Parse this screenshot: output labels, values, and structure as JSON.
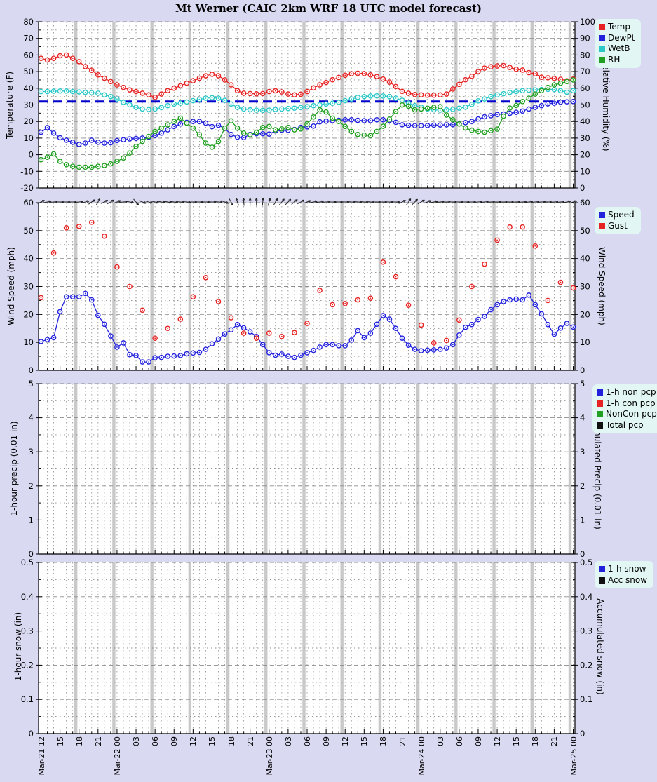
{
  "title": "Mt Werner (CAIC 2km WRF 18 UTC model forecast)",
  "colors": {
    "page_background": "#d9d9f2",
    "plot_background": "#ffffff",
    "legend_background": "#e2f7f3",
    "grid": "#8c8c8c",
    "day_band": "#c9c9c9",
    "freezing_line": "#0000cc"
  },
  "x_axis": {
    "tick_every_hours": 3,
    "hours_total": 84,
    "tick_labels": [
      "Mar-21 12",
      "15",
      "18",
      "21",
      "Mar-22 00",
      "03",
      "06",
      "09",
      "12",
      "15",
      "18",
      "21",
      "Mar-23 00",
      "03",
      "06",
      "09",
      "12",
      "15",
      "18",
      "21",
      "Mar-24 00",
      "03",
      "06",
      "09",
      "12",
      "15",
      "18",
      "21",
      "Mar-25 00"
    ]
  },
  "chart_data": [
    {
      "type": "line",
      "name": "temperature-humidity",
      "ylabel_left": "Temperature (F)",
      "ylabel_right": "Relative Humidity (%)",
      "ylim_left": [
        -20,
        80
      ],
      "ylim_right": [
        0,
        100
      ],
      "ytick_major": 10,
      "ytick_minor": 5,
      "freezing_line": {
        "value": 32,
        "color": "#0000cc",
        "style": "dashed"
      },
      "legend": [
        {
          "label": "Temp",
          "color": "#e62222"
        },
        {
          "label": "DewPt",
          "color": "#2222dd"
        },
        {
          "label": "WetB",
          "color": "#2cc8c8"
        },
        {
          "label": "RH",
          "color": "#22a022"
        }
      ],
      "series": [
        {
          "name": "Temp",
          "axis": "left",
          "color": "#e62222",
          "line": true,
          "x_step_hours": 1,
          "values": [
            58,
            57,
            58,
            59.5,
            60,
            58,
            56,
            53,
            50.8,
            48,
            46,
            44,
            42,
            40.5,
            39,
            38,
            37,
            36,
            34.5,
            36.5,
            38.5,
            40,
            41.5,
            43,
            44.5,
            46,
            47.5,
            48.4,
            47.5,
            45,
            42,
            38.5,
            37,
            36.8,
            36.6,
            36.8,
            38,
            38.4,
            37.8,
            36.5,
            36,
            36.4,
            38,
            40.2,
            42,
            43.5,
            45.1,
            46.5,
            47.8,
            48.7,
            49,
            48.8,
            48,
            47,
            45.5,
            43.7,
            41,
            38.1,
            37,
            36.2,
            36,
            35.8,
            35.8,
            36,
            36.5,
            39.5,
            42.3,
            45.1,
            47.2,
            50,
            52.1,
            52.9,
            53.4,
            53.6,
            52.5,
            51.4,
            50.9,
            49.4,
            48.7,
            46.6,
            46.3,
            45.9,
            45.4,
            44.5,
            45.5
          ]
        },
        {
          "name": "DewPt",
          "axis": "left",
          "color": "#2222dd",
          "line": true,
          "x_step_hours": 1,
          "values": [
            13.5,
            16.3,
            13,
            10.2,
            8.7,
            7.5,
            6.2,
            7,
            8.7,
            7.5,
            7,
            7.2,
            8.5,
            9,
            9.5,
            9.8,
            10,
            10.5,
            11.5,
            13,
            15,
            17,
            18.5,
            19.5,
            20,
            20,
            19,
            16.9,
            17.7,
            15.9,
            12.2,
            10.5,
            10.3,
            12.2,
            12.6,
            12.6,
            12.4,
            14.3,
            14.7,
            14.7,
            15.2,
            16.4,
            16.8,
            17.2,
            19.8,
            20.2,
            20.5,
            20.7,
            21,
            21,
            20.7,
            20.5,
            20.5,
            21,
            21,
            20.6,
            19.5,
            18,
            17.7,
            17.5,
            17.5,
            17.6,
            17.8,
            17.9,
            18,
            18.1,
            18.6,
            19.3,
            20,
            21.5,
            22.8,
            23.5,
            24.2,
            24.5,
            24.9,
            25.5,
            26.3,
            27.5,
            28.5,
            29.5,
            30.6,
            31,
            31.6,
            31.8,
            32
          ]
        },
        {
          "name": "WetB",
          "axis": "left",
          "color": "#2cc8c8",
          "line": true,
          "x_step_hours": 1,
          "values": [
            38,
            38,
            38.2,
            38.3,
            38.3,
            38,
            37.8,
            37.5,
            37.3,
            37,
            36,
            35,
            33.5,
            31.5,
            30,
            28.5,
            27.5,
            27.2,
            27.5,
            28.4,
            29.5,
            30.5,
            31,
            31.7,
            32.5,
            33.3,
            34,
            34.3,
            34,
            32.7,
            30.5,
            28.5,
            27.5,
            27,
            26.8,
            26.7,
            26.8,
            27.2,
            27.5,
            27.8,
            28,
            28.4,
            28.9,
            29.5,
            30,
            30.5,
            31,
            31.5,
            32.5,
            33.5,
            34.5,
            35,
            35.3,
            35.4,
            35.3,
            35,
            34,
            32.8,
            31,
            29.5,
            28.6,
            27.5,
            27,
            26.8,
            27,
            27.3,
            28,
            28.6,
            30.3,
            32.4,
            33.5,
            35,
            36,
            36.7,
            37.5,
            38,
            38.5,
            38.8,
            39,
            39.2,
            39.3,
            39.2,
            38.5,
            37.6,
            38.5
          ]
        },
        {
          "name": "RH",
          "axis": "right",
          "color": "#22a022",
          "line": true,
          "x_step_hours": 1,
          "values": [
            17,
            18.5,
            20.5,
            16,
            14,
            13,
            12.5,
            12.5,
            12.5,
            13,
            13.5,
            14.5,
            16,
            18,
            21,
            25,
            28,
            31,
            34,
            36,
            38,
            40,
            42,
            39,
            36,
            32,
            27,
            24.5,
            28,
            36,
            40.4,
            36,
            33,
            32,
            33.5,
            36.4,
            37,
            35,
            35.5,
            36.4,
            35,
            35.5,
            38.5,
            42.7,
            47,
            45.7,
            42,
            40,
            37,
            34,
            32.2,
            31.8,
            31.5,
            34,
            37.1,
            41.4,
            46,
            49.9,
            49.2,
            47,
            47.5,
            48,
            48.5,
            48.9,
            43.9,
            41,
            38.5,
            36.1,
            34.7,
            34,
            33.5,
            34.5,
            35.4,
            43.2,
            48.1,
            49.6,
            52,
            54,
            56.5,
            58.5,
            60.5,
            62,
            63,
            64,
            65
          ]
        }
      ]
    },
    {
      "type": "line",
      "name": "wind",
      "ylabel_left": "Wind Speed (mph)",
      "ylabel_right": "Wind Speed (mph)",
      "ylim_left": [
        0,
        60
      ],
      "ylim_right": [
        0,
        60
      ],
      "ytick_major": 10,
      "ytick_minor": 5,
      "legend": [
        {
          "label": "Speed",
          "color": "#2222dd"
        },
        {
          "label": "Gust",
          "color": "#e62222"
        }
      ],
      "wind_direction_deg": [
        25,
        10,
        5,
        0,
        0,
        0,
        5,
        15,
        35,
        60,
        25,
        30,
        20,
        5,
        -10,
        -50,
        -20,
        -15,
        -12,
        -10,
        -10,
        -8,
        -5,
        -5,
        0,
        0,
        0,
        0,
        -5,
        -20,
        -60,
        110,
        95,
        90,
        90,
        85,
        75,
        60,
        50,
        45,
        40,
        30,
        20,
        12,
        8,
        5,
        0,
        0,
        -3,
        -5,
        -5,
        -5,
        -5,
        0,
        0,
        0,
        0,
        25,
        55,
        45,
        30,
        20,
        10,
        5,
        3,
        0,
        0,
        0,
        3,
        5,
        5,
        3,
        0,
        0,
        0,
        3,
        5,
        8,
        5,
        3,
        0,
        3,
        5,
        10,
        15
      ],
      "series": [
        {
          "name": "Speed",
          "axis": "left",
          "color": "#2222dd",
          "line": true,
          "x_step_hours": 1,
          "values": [
            10.3,
            11,
            11.7,
            21,
            26.3,
            26.3,
            26.3,
            27.5,
            25.2,
            19.7,
            16.5,
            12.3,
            8.3,
            9.8,
            5.6,
            5.3,
            3,
            3,
            4.5,
            4.6,
            5,
            5.1,
            5.3,
            5.9,
            6.2,
            6.4,
            7.5,
            9.5,
            11.2,
            13,
            14.5,
            16.4,
            15.2,
            13.8,
            12.1,
            9.2,
            6.3,
            5.4,
            5.8,
            5,
            4.6,
            5.4,
            6.3,
            7.1,
            8.3,
            9.2,
            9.2,
            8.8,
            8.8,
            10.8,
            14.2,
            11.7,
            13.3,
            16.5,
            19.6,
            18.3,
            15,
            11.5,
            9,
            7.5,
            7,
            7.2,
            7.3,
            7.5,
            8,
            9.2,
            12.6,
            15.4,
            16.4,
            18.2,
            19.3,
            21.7,
            23.5,
            24.6,
            25.2,
            25.5,
            25.2,
            26.9,
            23.5,
            20.2,
            16.4,
            12.9,
            15.1,
            16.8,
            15.5
          ]
        },
        {
          "name": "Gust",
          "axis": "left",
          "color": "#e62222",
          "line": false,
          "x_step_hours": 2,
          "values": [
            26,
            42,
            51,
            51.5,
            53,
            48,
            37,
            30,
            21.5,
            11.5,
            15,
            18.3,
            26.3,
            33.2,
            24.6,
            18.8,
            13.3,
            11.5,
            13.3,
            12.1,
            13.5,
            16.8,
            28.6,
            23.5,
            23.9,
            25.2,
            25.8,
            38.7,
            33.5,
            23.3,
            16.2,
            9.8,
            10.7,
            18,
            30,
            38,
            46.6,
            51.3,
            51.3,
            44.5,
            25,
            31.5,
            29.5
          ]
        }
      ]
    },
    {
      "type": "line",
      "name": "precipitation",
      "ylabel_left": "1-hour precip (0.01 in)",
      "ylabel_right": "Accumulated Precip (0.01 in)",
      "ylim_left": [
        0,
        5
      ],
      "ylim_right": [
        0,
        5
      ],
      "ytick_major": 1,
      "ytick_minor": 0.5,
      "legend": [
        {
          "label": "1-h non pcp",
          "color": "#2222dd"
        },
        {
          "label": "1-h con pcp",
          "color": "#e62222"
        },
        {
          "label": "NonCon pcp",
          "color": "#22a022"
        },
        {
          "label": "Total pcp",
          "color": "#111111"
        }
      ],
      "series": [
        {
          "name": "1-h non pcp",
          "axis": "left",
          "color": "#2222dd",
          "line": true,
          "x_step_hours": 1,
          "values": []
        },
        {
          "name": "1-h con pcp",
          "axis": "left",
          "color": "#e62222",
          "line": false,
          "x_step_hours": 1,
          "values": []
        },
        {
          "name": "NonCon pcp",
          "axis": "right",
          "color": "#22a022",
          "line": true,
          "x_step_hours": 1,
          "values": []
        },
        {
          "name": "Total pcp",
          "axis": "right",
          "color": "#111111",
          "line": true,
          "x_step_hours": 1,
          "values": []
        }
      ]
    },
    {
      "type": "line",
      "name": "snow",
      "ylabel_left": "1-hour snow (in)",
      "ylabel_right": "Accumulated snow (in)",
      "ylim_left": [
        0,
        0.5
      ],
      "ylim_right": [
        0,
        0.5
      ],
      "ytick_major": 0.1,
      "ytick_minor": 0.05,
      "legend": [
        {
          "label": "1-h snow",
          "color": "#2222dd"
        },
        {
          "label": "Acc snow",
          "color": "#111111"
        }
      ],
      "series": [
        {
          "name": "1-h snow",
          "axis": "left",
          "color": "#2222dd",
          "line": true,
          "x_step_hours": 1,
          "values": []
        },
        {
          "name": "Acc snow",
          "axis": "right",
          "color": "#111111",
          "line": true,
          "x_step_hours": 1,
          "values": []
        }
      ]
    }
  ]
}
